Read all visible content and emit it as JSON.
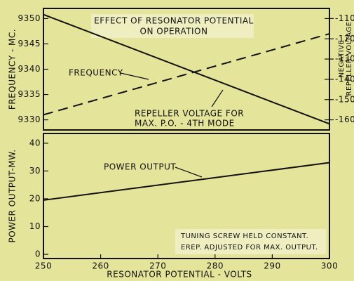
{
  "chart_data": [
    {
      "type": "line",
      "ylabel": "FREQUENCY - MC.",
      "y2label": [
        "NEGATIVE",
        "REPELLER VOLTAGE"
      ],
      "annotations": [
        "EFFECT OF RESONATOR POTENTIAL",
        "ON OPERATION",
        "FREQUENCY",
        "REPELLER VOLTAGE FOR",
        "MAX. P.O. - 4TH MODE"
      ],
      "x": [
        250,
        300
      ],
      "xlim": [
        250,
        300
      ],
      "ylim": [
        9328,
        9352
      ],
      "yticks": [
        9330,
        9335,
        9340,
        9345,
        9350
      ],
      "y2lim": [
        -165,
        -105
      ],
      "y2ticks": [
        -160,
        -150,
        -140,
        -130,
        -120,
        -110
      ],
      "series": [
        {
          "color": "#111111",
          "dashed": true,
          "values": [
            9331,
            9347
          ]
        },
        {
          "color": "#111111",
          "dashed": false,
          "axis": "y2",
          "values": [
            -108,
            -162
          ]
        }
      ]
    },
    {
      "type": "line",
      "ylabel": "POWER OUTPUT-MW.",
      "xlabel": "RESONATOR POTENTIAL - VOLTS",
      "annotations": [
        "POWER OUTPUT",
        "TUNING SCREW HELD CONSTANT.",
        "EREP. ADJUSTED FOR MAX. OUTPUT."
      ],
      "x": [
        250,
        300
      ],
      "xlim": [
        250,
        300
      ],
      "xticks": [
        250,
        260,
        270,
        280,
        290,
        300
      ],
      "ylim": [
        -1.5,
        43.5
      ],
      "yticks": [
        0,
        10,
        20,
        30,
        40
      ],
      "series": [
        {
          "color": "#111111",
          "dashed": false,
          "values": [
            19.5,
            33
          ]
        }
      ]
    }
  ]
}
